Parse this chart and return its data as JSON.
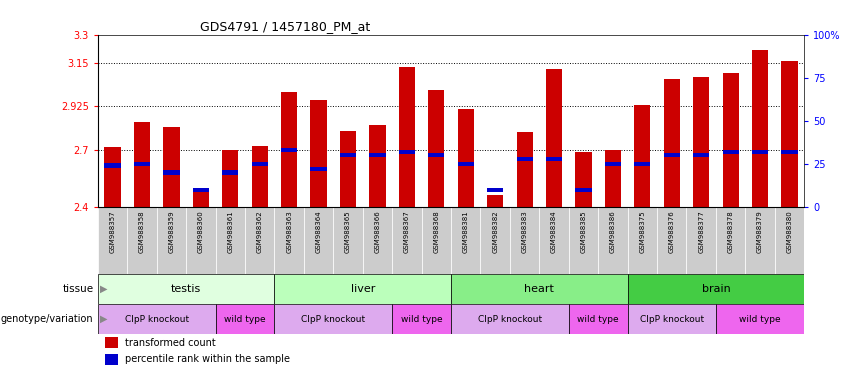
{
  "title": "GDS4791 / 1457180_PM_at",
  "samples": [
    "GSM988357",
    "GSM988358",
    "GSM988359",
    "GSM988360",
    "GSM988361",
    "GSM988362",
    "GSM988363",
    "GSM988364",
    "GSM988365",
    "GSM988366",
    "GSM988367",
    "GSM988368",
    "GSM988381",
    "GSM988382",
    "GSM988383",
    "GSM988384",
    "GSM988385",
    "GSM988386",
    "GSM988375",
    "GSM988376",
    "GSM988377",
    "GSM988378",
    "GSM988379",
    "GSM988380"
  ],
  "bar_values": [
    2.715,
    2.845,
    2.82,
    2.49,
    2.7,
    2.72,
    3.0,
    2.96,
    2.795,
    2.83,
    3.13,
    3.01,
    2.91,
    2.465,
    2.79,
    3.12,
    2.685,
    2.7,
    2.93,
    3.07,
    3.08,
    3.1,
    3.22,
    3.16
  ],
  "percentile_values": [
    24,
    25,
    20,
    10,
    20,
    25,
    33,
    22,
    30,
    30,
    32,
    30,
    25,
    10,
    28,
    28,
    10,
    25,
    25,
    30,
    30,
    32,
    32,
    32
  ],
  "ymin": 2.4,
  "ymax": 3.3,
  "yticks": [
    2.4,
    2.7,
    2.925,
    3.15,
    3.3
  ],
  "ytick_labels": [
    "2.4",
    "2.7",
    "2.925",
    "3.15",
    "3.3"
  ],
  "right_yticks": [
    0,
    25,
    50,
    75,
    100
  ],
  "right_ytick_labels": [
    "0",
    "25",
    "50",
    "75",
    "100%"
  ],
  "grid_lines": [
    2.7,
    2.925,
    3.15
  ],
  "tissues": [
    {
      "label": "testis",
      "start": 0,
      "end": 6,
      "color": "#e0ffe0"
    },
    {
      "label": "liver",
      "start": 6,
      "end": 12,
      "color": "#bbffbb"
    },
    {
      "label": "heart",
      "start": 12,
      "end": 18,
      "color": "#88ee88"
    },
    {
      "label": "brain",
      "start": 18,
      "end": 24,
      "color": "#44cc44"
    }
  ],
  "genotypes": [
    {
      "label": "ClpP knockout",
      "start": 0,
      "end": 4,
      "color": "#ddaaee"
    },
    {
      "label": "wild type",
      "start": 4,
      "end": 6,
      "color": "#ee66ee"
    },
    {
      "label": "ClpP knockout",
      "start": 6,
      "end": 10,
      "color": "#ddaaee"
    },
    {
      "label": "wild type",
      "start": 10,
      "end": 12,
      "color": "#ee66ee"
    },
    {
      "label": "ClpP knockout",
      "start": 12,
      "end": 16,
      "color": "#ddaaee"
    },
    {
      "label": "wild type",
      "start": 16,
      "end": 18,
      "color": "#ee66ee"
    },
    {
      "label": "ClpP knockout",
      "start": 18,
      "end": 21,
      "color": "#ddaaee"
    },
    {
      "label": "wild type",
      "start": 21,
      "end": 24,
      "color": "#ee66ee"
    }
  ],
  "bar_color": "#cc0000",
  "marker_color": "#0000cc",
  "chart_bg": "#ffffff",
  "label_bg": "#cccccc",
  "legend_items": [
    {
      "color": "#cc0000",
      "label": "transformed count"
    },
    {
      "color": "#0000cc",
      "label": "percentile rank within the sample"
    }
  ]
}
